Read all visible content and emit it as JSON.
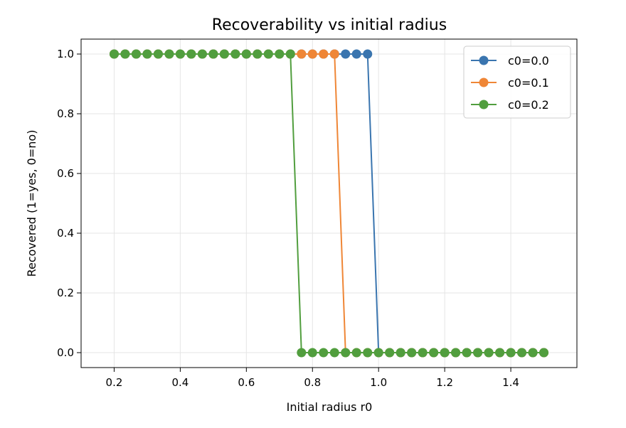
{
  "chart_data": {
    "type": "line",
    "title": "Recoverability vs initial radius",
    "xlabel": "Initial radius r0",
    "ylabel": "Recovered (1=yes, 0=no)",
    "xlim": [
      0.1,
      1.6
    ],
    "ylim": [
      -0.05,
      1.05
    ],
    "xticks": [
      0.2,
      0.4,
      0.6,
      0.8,
      1.0,
      1.2,
      1.4
    ],
    "xtick_labels": [
      "0.2",
      "0.4",
      "0.6",
      "0.8",
      "1.0",
      "1.2",
      "1.4"
    ],
    "yticks": [
      0.0,
      0.2,
      0.4,
      0.6,
      0.8,
      1.0
    ],
    "ytick_labels": [
      "0.0",
      "0.2",
      "0.4",
      "0.6",
      "0.8",
      "1.0"
    ],
    "grid": true,
    "legend_position": "top-right",
    "x": [
      0.2,
      0.2333,
      0.2667,
      0.3,
      0.3333,
      0.3667,
      0.4,
      0.4333,
      0.4667,
      0.5,
      0.5333,
      0.5667,
      0.6,
      0.6333,
      0.6667,
      0.7,
      0.7333,
      0.7667,
      0.8,
      0.8333,
      0.8667,
      0.9,
      0.9333,
      0.9667,
      1.0,
      1.0333,
      1.0667,
      1.1,
      1.1333,
      1.1667,
      1.2,
      1.2333,
      1.2667,
      1.3,
      1.3333,
      1.3667,
      1.4,
      1.4333,
      1.4667,
      1.5
    ],
    "series": [
      {
        "name": "c0=0.0",
        "color": "#3a75af",
        "values": [
          1,
          1,
          1,
          1,
          1,
          1,
          1,
          1,
          1,
          1,
          1,
          1,
          1,
          1,
          1,
          1,
          1,
          1,
          1,
          1,
          1,
          1,
          1,
          1,
          0,
          0,
          0,
          0,
          0,
          0,
          0,
          0,
          0,
          0,
          0,
          0,
          0,
          0,
          0,
          0
        ]
      },
      {
        "name": "c0=0.1",
        "color": "#ef8636",
        "values": [
          1,
          1,
          1,
          1,
          1,
          1,
          1,
          1,
          1,
          1,
          1,
          1,
          1,
          1,
          1,
          1,
          1,
          1,
          1,
          1,
          1,
          0,
          0,
          0,
          0,
          0,
          0,
          0,
          0,
          0,
          0,
          0,
          0,
          0,
          0,
          0,
          0,
          0,
          0,
          0
        ]
      },
      {
        "name": "c0=0.2",
        "color": "#519e3e",
        "values": [
          1,
          1,
          1,
          1,
          1,
          1,
          1,
          1,
          1,
          1,
          1,
          1,
          1,
          1,
          1,
          1,
          1,
          0,
          0,
          0,
          0,
          0,
          0,
          0,
          0,
          0,
          0,
          0,
          0,
          0,
          0,
          0,
          0,
          0,
          0,
          0,
          0,
          0,
          0,
          0
        ]
      }
    ]
  }
}
